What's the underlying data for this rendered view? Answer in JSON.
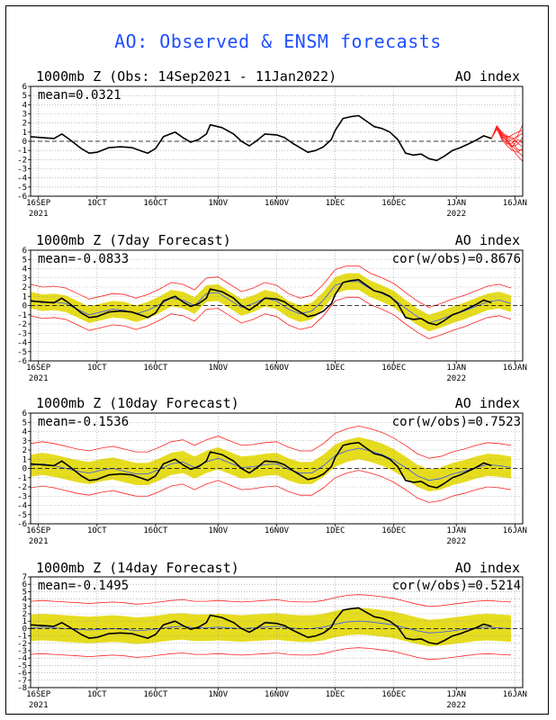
{
  "title": "AO: Observed & ENSM forecasts",
  "colors": {
    "title": "#1f4fff",
    "observed": "#000000",
    "ensemble_band": "#e6dc1e",
    "ensemble_bounds": "#ff2020",
    "ensemble_mean": "#3355ff",
    "grid": "#9a9a9a"
  },
  "chart_data": [
    {
      "type": "line",
      "title": "1000mb Z (Obs: 14Sep2021 - 11Jan2022)",
      "right_label": "AO index",
      "mean_label": "mean=0.0321",
      "cor_label": "",
      "ylim": [
        -6,
        6
      ],
      "yticks": [
        6,
        5,
        4,
        3,
        2,
        1,
        0,
        -1,
        -2,
        -3,
        -4,
        -5,
        -6
      ],
      "x_range": [
        0,
        126
      ],
      "xticks": [
        {
          "x": 2,
          "label": "16SEP",
          "year": "2021"
        },
        {
          "x": 17,
          "label": "1OCT",
          "year": ""
        },
        {
          "x": 32,
          "label": "16OCT",
          "year": ""
        },
        {
          "x": 48,
          "label": "1NOV",
          "year": ""
        },
        {
          "x": 63,
          "label": "16NOV",
          "year": ""
        },
        {
          "x": 78,
          "label": "1DEC",
          "year": ""
        },
        {
          "x": 93,
          "label": "16DEC",
          "year": ""
        },
        {
          "x": 109,
          "label": "1JAN",
          "year": "2022"
        },
        {
          "x": 124,
          "label": "16JAN",
          "year": ""
        }
      ],
      "observed": {
        "x": [
          0,
          3,
          6,
          8,
          10,
          13,
          15,
          17,
          20,
          23,
          26,
          28,
          30,
          32,
          34,
          37,
          39,
          41,
          43,
          45,
          46,
          49,
          52,
          54,
          56,
          58,
          60,
          63,
          65,
          67,
          69,
          71,
          73,
          75,
          77,
          78,
          80,
          82,
          84,
          86,
          88,
          90,
          92,
          94,
          96,
          98,
          100,
          102,
          104,
          106,
          108,
          110,
          112,
          114,
          116,
          118
        ],
        "y": [
          0.5,
          0.4,
          0.3,
          0.8,
          0.2,
          -0.8,
          -1.3,
          -1.2,
          -0.7,
          -0.6,
          -0.7,
          -1.0,
          -1.3,
          -0.8,
          0.5,
          1.0,
          0.4,
          -0.1,
          0.2,
          0.8,
          1.8,
          1.5,
          0.8,
          0.0,
          -0.5,
          0.1,
          0.8,
          0.7,
          0.4,
          -0.2,
          -0.7,
          -1.2,
          -1.0,
          -0.6,
          0.2,
          1.2,
          2.5,
          2.7,
          2.8,
          2.2,
          1.6,
          1.4,
          1.0,
          0.2,
          -1.3,
          -1.5,
          -1.4,
          -1.9,
          -2.1,
          -1.6,
          -1.0,
          -0.7,
          -0.3,
          0.1,
          0.6,
          0.3
        ]
      },
      "spaghetti": {
        "start_x": 118,
        "start_y": 0.3,
        "end_x": 126,
        "members": [
          [
            0.3,
            1.6,
            0.5,
            0.1,
            -0.5,
            -1.1,
            -1.6
          ],
          [
            0.3,
            1.5,
            0.8,
            0.5,
            0.2,
            0.6,
            1.8
          ],
          [
            0.3,
            1.4,
            0.6,
            0.0,
            -0.8,
            -1.6,
            -2.2
          ],
          [
            0.3,
            1.7,
            1.0,
            0.6,
            0.4,
            -0.2,
            -0.6
          ],
          [
            0.3,
            1.5,
            0.4,
            -0.3,
            -0.2,
            0.5,
            0.9
          ],
          [
            0.3,
            1.3,
            0.6,
            0.2,
            -0.6,
            -0.3,
            0.4
          ],
          [
            0.3,
            1.6,
            0.9,
            0.3,
            0.0,
            -0.9,
            -1.0
          ],
          [
            0.3,
            1.4,
            0.2,
            -0.5,
            -1.0,
            -1.2,
            -0.8
          ],
          [
            0.3,
            1.5,
            0.7,
            0.4,
            0.7,
            1.0,
            1.2
          ],
          [
            0.3,
            1.6,
            0.3,
            -0.2,
            -0.6,
            0.2,
            -0.2
          ]
        ]
      }
    },
    {
      "type": "line",
      "title": "1000mb Z (7day Forecast)",
      "right_label": "AO index",
      "mean_label": "mean=-0.0833",
      "cor_label": "cor(w/obs)=0.8676",
      "ylim": [
        -6,
        6
      ],
      "yticks": [
        6,
        5,
        4,
        3,
        2,
        1,
        0,
        -1,
        -2,
        -3,
        -4,
        -5,
        -6
      ],
      "x_range": [
        0,
        126
      ],
      "xticks": [
        {
          "x": 2,
          "label": "16SEP",
          "year": "2021"
        },
        {
          "x": 17,
          "label": "1OCT",
          "year": ""
        },
        {
          "x": 32,
          "label": "16OCT",
          "year": ""
        },
        {
          "x": 48,
          "label": "1NOV",
          "year": ""
        },
        {
          "x": 63,
          "label": "16NOV",
          "year": ""
        },
        {
          "x": 78,
          "label": "1DEC",
          "year": ""
        },
        {
          "x": 93,
          "label": "16DEC",
          "year": ""
        },
        {
          "x": 109,
          "label": "1JAN",
          "year": "2022"
        },
        {
          "x": 124,
          "label": "16JAN",
          "year": ""
        }
      ],
      "band_spread": 0.9,
      "outer_spread": 1.7,
      "forecast_x": [
        0,
        3,
        6,
        9,
        12,
        15,
        18,
        21,
        24,
        27,
        30,
        33,
        36,
        39,
        42,
        45,
        48,
        51,
        54,
        57,
        60,
        63,
        66,
        69,
        72,
        75,
        78,
        81,
        84,
        87,
        90,
        93,
        96,
        99,
        102,
        105,
        108,
        111,
        114,
        117,
        120,
        123
      ],
      "forecast_mean": [
        0.6,
        0.3,
        0.4,
        0.2,
        -0.4,
        -1.0,
        -0.7,
        -0.4,
        -0.5,
        -0.9,
        -0.5,
        0.1,
        0.8,
        0.6,
        0.0,
        1.3,
        1.4,
        0.6,
        -0.2,
        0.2,
        0.8,
        0.5,
        -0.4,
        -0.9,
        -0.6,
        0.6,
        2.2,
        2.6,
        2.6,
        1.8,
        1.3,
        0.7,
        -0.3,
        -1.2,
        -1.9,
        -1.5,
        -1.0,
        -0.6,
        -0.1,
        0.4,
        0.6,
        0.2
      ],
      "observed": {
        "x": [
          0,
          3,
          6,
          8,
          10,
          13,
          15,
          17,
          20,
          23,
          26,
          28,
          30,
          32,
          34,
          37,
          39,
          41,
          43,
          45,
          46,
          49,
          52,
          54,
          56,
          58,
          60,
          63,
          65,
          67,
          69,
          71,
          73,
          75,
          77,
          78,
          80,
          82,
          84,
          86,
          88,
          90,
          92,
          94,
          96,
          98,
          100,
          102,
          104,
          106,
          108,
          110,
          112,
          114,
          116,
          118
        ],
        "y": [
          0.5,
          0.4,
          0.3,
          0.8,
          0.2,
          -0.8,
          -1.3,
          -1.2,
          -0.7,
          -0.6,
          -0.7,
          -1.0,
          -1.3,
          -0.8,
          0.5,
          1.0,
          0.4,
          -0.1,
          0.2,
          0.8,
          1.8,
          1.5,
          0.8,
          0.0,
          -0.5,
          0.1,
          0.8,
          0.7,
          0.4,
          -0.2,
          -0.7,
          -1.2,
          -1.0,
          -0.6,
          0.2,
          1.2,
          2.5,
          2.7,
          2.8,
          2.2,
          1.6,
          1.4,
          1.0,
          0.2,
          -1.3,
          -1.5,
          -1.4,
          -1.9,
          -2.1,
          -1.6,
          -1.0,
          -0.7,
          -0.3,
          0.1,
          0.6,
          0.3
        ]
      }
    },
    {
      "type": "line",
      "title": "1000mb Z (10day Forecast)",
      "right_label": "AO index",
      "mean_label": "mean=-0.1536",
      "cor_label": "cor(w/obs)=0.7523",
      "ylim": [
        -6,
        6
      ],
      "yticks": [
        6,
        5,
        4,
        3,
        2,
        1,
        0,
        -1,
        -2,
        -3,
        -4,
        -5,
        -6
      ],
      "x_range": [
        0,
        126
      ],
      "xticks": [
        {
          "x": 2,
          "label": "16SEP",
          "year": "2021"
        },
        {
          "x": 17,
          "label": "1OCT",
          "year": ""
        },
        {
          "x": 32,
          "label": "16OCT",
          "year": ""
        },
        {
          "x": 48,
          "label": "1NOV",
          "year": ""
        },
        {
          "x": 63,
          "label": "16NOV",
          "year": ""
        },
        {
          "x": 78,
          "label": "1DEC",
          "year": ""
        },
        {
          "x": 93,
          "label": "16DEC",
          "year": ""
        },
        {
          "x": 109,
          "label": "1JAN",
          "year": "2022"
        },
        {
          "x": 124,
          "label": "16JAN",
          "year": ""
        }
      ],
      "band_spread": 1.2,
      "outer_spread": 2.4,
      "forecast_x": [
        0,
        3,
        6,
        9,
        12,
        15,
        18,
        21,
        24,
        27,
        30,
        33,
        36,
        39,
        42,
        45,
        48,
        51,
        54,
        57,
        60,
        63,
        66,
        69,
        72,
        75,
        78,
        81,
        84,
        87,
        90,
        93,
        96,
        99,
        102,
        105,
        108,
        111,
        114,
        117,
        120,
        123
      ],
      "forecast_mean": [
        0.3,
        0.5,
        0.3,
        0.0,
        -0.3,
        -0.5,
        -0.2,
        0.0,
        -0.3,
        -0.6,
        -0.6,
        -0.1,
        0.5,
        0.7,
        0.1,
        0.7,
        1.1,
        0.6,
        0.1,
        0.2,
        0.4,
        0.5,
        -0.1,
        -0.5,
        -0.5,
        0.3,
        1.4,
        1.9,
        2.2,
        1.9,
        1.5,
        0.9,
        0.1,
        -0.8,
        -1.3,
        -1.1,
        -0.6,
        -0.3,
        0.1,
        0.4,
        0.3,
        0.1
      ],
      "observed": {
        "x": [
          0,
          3,
          6,
          8,
          10,
          13,
          15,
          17,
          20,
          23,
          26,
          28,
          30,
          32,
          34,
          37,
          39,
          41,
          43,
          45,
          46,
          49,
          52,
          54,
          56,
          58,
          60,
          63,
          65,
          67,
          69,
          71,
          73,
          75,
          77,
          78,
          80,
          82,
          84,
          86,
          88,
          90,
          92,
          94,
          96,
          98,
          100,
          102,
          104,
          106,
          108,
          110,
          112,
          114,
          116,
          118
        ],
        "y": [
          0.5,
          0.4,
          0.3,
          0.8,
          0.2,
          -0.8,
          -1.3,
          -1.2,
          -0.7,
          -0.6,
          -0.7,
          -1.0,
          -1.3,
          -0.8,
          0.5,
          1.0,
          0.4,
          -0.1,
          0.2,
          0.8,
          1.8,
          1.5,
          0.8,
          0.0,
          -0.5,
          0.1,
          0.8,
          0.7,
          0.4,
          -0.2,
          -0.7,
          -1.2,
          -1.0,
          -0.6,
          0.2,
          1.2,
          2.5,
          2.7,
          2.8,
          2.2,
          1.6,
          1.4,
          1.0,
          0.2,
          -1.3,
          -1.5,
          -1.4,
          -1.9,
          -2.1,
          -1.6,
          -1.0,
          -0.7,
          -0.3,
          0.1,
          0.6,
          0.3
        ]
      }
    },
    {
      "type": "line",
      "title": "1000mb Z (14day Forecast)",
      "right_label": "AO index",
      "mean_label": "mean=-0.1495",
      "cor_label": "cor(w/obs)=0.5214",
      "ylim": [
        -8,
        7
      ],
      "yticks": [
        7,
        6,
        5,
        4,
        3,
        2,
        1,
        0,
        -1,
        -2,
        -3,
        -4,
        -5,
        -6,
        -7,
        -8
      ],
      "x_range": [
        0,
        126
      ],
      "xticks": [
        {
          "x": 2,
          "label": "16SEP",
          "year": "2021"
        },
        {
          "x": 17,
          "label": "1OCT",
          "year": ""
        },
        {
          "x": 32,
          "label": "16OCT",
          "year": ""
        },
        {
          "x": 48,
          "label": "1NOV",
          "year": ""
        },
        {
          "x": 63,
          "label": "16NOV",
          "year": ""
        },
        {
          "x": 78,
          "label": "1DEC",
          "year": ""
        },
        {
          "x": 93,
          "label": "16DEC",
          "year": ""
        },
        {
          "x": 109,
          "label": "1JAN",
          "year": "2022"
        },
        {
          "x": 124,
          "label": "16JAN",
          "year": ""
        }
      ],
      "band_spread": 1.8,
      "outer_spread": 3.6,
      "forecast_x": [
        0,
        3,
        6,
        9,
        12,
        15,
        18,
        21,
        24,
        27,
        30,
        33,
        36,
        39,
        42,
        45,
        48,
        51,
        54,
        57,
        60,
        63,
        66,
        69,
        72,
        75,
        78,
        81,
        84,
        87,
        90,
        93,
        96,
        99,
        102,
        105,
        108,
        111,
        114,
        117,
        120,
        123
      ],
      "forecast_mean": [
        0.1,
        0.2,
        0.1,
        0.0,
        -0.1,
        -0.2,
        -0.1,
        0.0,
        -0.1,
        -0.3,
        -0.2,
        0.0,
        0.2,
        0.3,
        0.1,
        0.1,
        0.2,
        0.1,
        0.0,
        0.1,
        0.2,
        0.3,
        0.1,
        0.0,
        0.0,
        0.2,
        0.6,
        0.9,
        1.0,
        0.9,
        0.7,
        0.5,
        0.1,
        -0.3,
        -0.6,
        -0.5,
        -0.3,
        -0.1,
        0.1,
        0.2,
        0.1,
        0.0
      ],
      "observed": {
        "x": [
          0,
          3,
          6,
          8,
          10,
          13,
          15,
          17,
          20,
          23,
          26,
          28,
          30,
          32,
          34,
          37,
          39,
          41,
          43,
          45,
          46,
          49,
          52,
          54,
          56,
          58,
          60,
          63,
          65,
          67,
          69,
          71,
          73,
          75,
          77,
          78,
          80,
          82,
          84,
          86,
          88,
          90,
          92,
          94,
          96,
          98,
          100,
          102,
          104,
          106,
          108,
          110,
          112,
          114,
          116,
          118
        ],
        "y": [
          0.5,
          0.4,
          0.3,
          0.8,
          0.2,
          -0.8,
          -1.3,
          -1.2,
          -0.7,
          -0.6,
          -0.7,
          -1.0,
          -1.3,
          -0.8,
          0.5,
          1.0,
          0.4,
          -0.1,
          0.2,
          0.8,
          1.8,
          1.5,
          0.8,
          0.0,
          -0.5,
          0.1,
          0.8,
          0.7,
          0.4,
          -0.2,
          -0.7,
          -1.2,
          -1.0,
          -0.6,
          0.2,
          1.2,
          2.5,
          2.7,
          2.8,
          2.2,
          1.6,
          1.4,
          1.0,
          0.2,
          -1.3,
          -1.5,
          -1.4,
          -1.9,
          -2.1,
          -1.6,
          -1.0,
          -0.7,
          -0.3,
          0.1,
          0.6,
          0.3
        ]
      }
    }
  ]
}
